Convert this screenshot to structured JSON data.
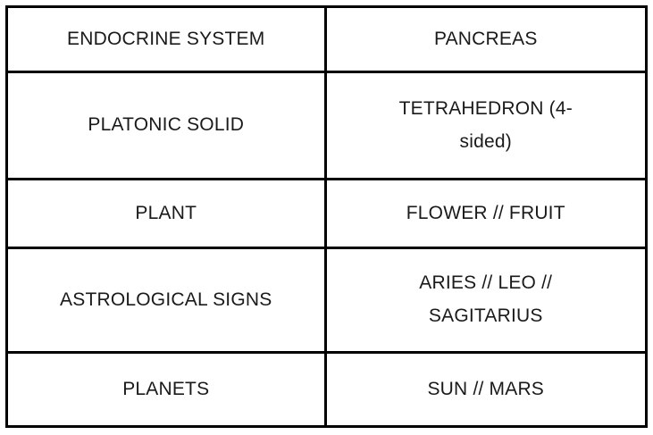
{
  "table": {
    "description": "Correspondence table with category column and value column",
    "columns": [
      "category",
      "value"
    ],
    "rows": [
      {
        "category": "ENDOCRINE SYSTEM",
        "value": "PANCREAS"
      },
      {
        "category": "PLATONIC SOLID",
        "value": "TETRAHEDRON (4-\nsided)"
      },
      {
        "category": "PLANT",
        "value": "FLOWER // FRUIT"
      },
      {
        "category": "ASTROLOGICAL SIGNS",
        "value": "ARIES // LEO //\nSAGITARIUS"
      },
      {
        "category": "PLANETS",
        "value": "SUN // MARS"
      }
    ],
    "colors": {
      "border": "#000000",
      "text": "#1a1a1a",
      "background": "#ffffff"
    }
  }
}
